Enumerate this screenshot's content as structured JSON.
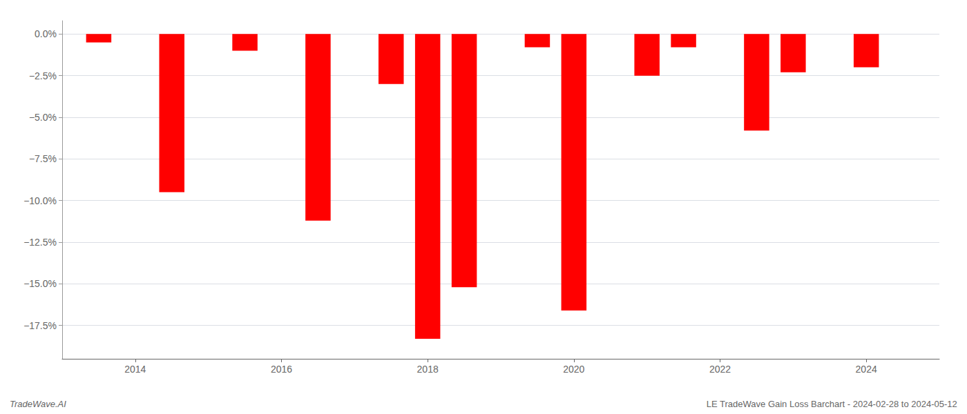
{
  "chart_data": {
    "type": "bar",
    "x": [
      2013.5,
      2014.5,
      2015.5,
      2016.5,
      2017.5,
      2018.0,
      2018.5,
      2019.5,
      2020.0,
      2021.0,
      2021.5,
      2022.5,
      2023.0,
      2024.0
    ],
    "values": [
      -0.5,
      -9.5,
      -1.0,
      -11.2,
      -3.0,
      -18.3,
      -15.2,
      -0.8,
      -16.6,
      -2.5,
      -0.8,
      -5.8,
      -2.3,
      -2.0
    ],
    "color": "#ff0000",
    "xlim": [
      2013.0,
      2025.0
    ],
    "xticks": [
      2014,
      2016,
      2018,
      2020,
      2022,
      2024
    ],
    "ylim": [
      -19.5,
      0.8
    ],
    "yticks": [
      {
        "value": 0.0,
        "label": "0.0%"
      },
      {
        "value": -2.5,
        "label": "−2.5%"
      },
      {
        "value": -5.0,
        "label": "−5.0%"
      },
      {
        "value": -7.5,
        "label": "−7.5%"
      },
      {
        "value": -10.0,
        "label": "−10.0%"
      },
      {
        "value": -12.5,
        "label": "−12.5%"
      },
      {
        "value": -15.0,
        "label": "−15.0%"
      },
      {
        "value": -17.5,
        "label": "−17.5%"
      }
    ],
    "grid": true,
    "annotations": [
      "TradeWave.AI",
      "LE TradeWave Gain Loss Barchart - 2024-02-28 to 2024-05-12"
    ]
  }
}
